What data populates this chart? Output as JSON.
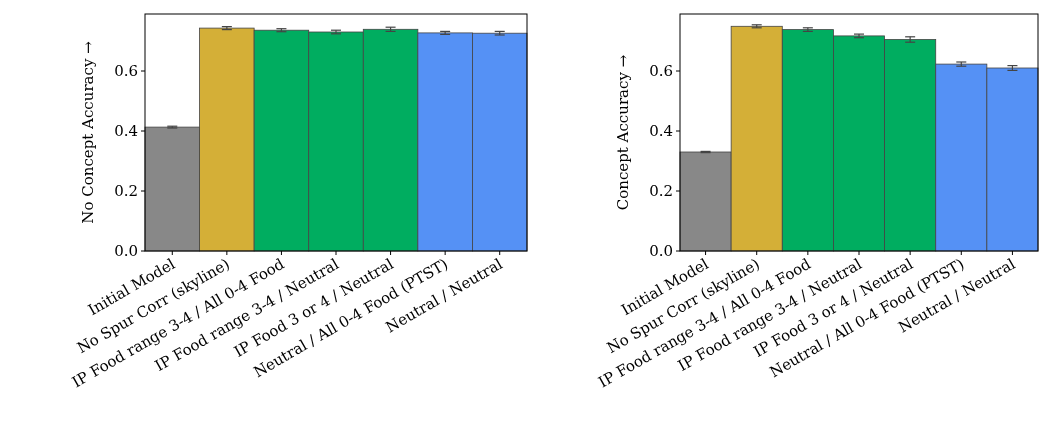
{
  "chart_data": [
    {
      "type": "bar",
      "ylabel": "No Concept Accuracy →",
      "categories": [
        "Initial Model",
        "No Spur Corr (skyline)",
        "IP Food range 3-4 / All 0-4 Food",
        "IP Food range 3-4 / Neutral",
        "IP Food 3 or 4 / Neutral",
        "Neutral / All 0-4 Food (PTST)",
        "Neutral / Neutral"
      ],
      "values": [
        0.413,
        0.743,
        0.736,
        0.73,
        0.739,
        0.727,
        0.726
      ],
      "errors": [
        0.003,
        0.005,
        0.005,
        0.006,
        0.007,
        0.005,
        0.006
      ],
      "colors": [
        "#888888",
        "#d4af37",
        "#00ad60",
        "#00ad60",
        "#00ad60",
        "#5591f5",
        "#5591f5"
      ],
      "ylim": [
        0,
        0.79
      ],
      "yticks": [
        {
          "value": 0,
          "label": "0.0"
        },
        0.2,
        0.4,
        0.6
      ],
      "grid": false
    },
    {
      "type": "bar",
      "ylabel": "Concept Accuracy →",
      "categories": [
        "Initial Model",
        "No Spur Corr (skyline)",
        "IP Food range 3-4 / All 0-4 Food",
        "IP Food range 3-4 / Neutral",
        "IP Food 3 or 4 / Neutral",
        "Neutral / All 0-4 Food (PTST)",
        "Neutral / Neutral"
      ],
      "values": [
        0.33,
        0.749,
        0.738,
        0.717,
        0.705,
        0.623,
        0.61
      ],
      "errors": [
        0.002,
        0.005,
        0.006,
        0.006,
        0.009,
        0.007,
        0.008
      ],
      "colors": [
        "#888888",
        "#d4af37",
        "#00ad60",
        "#00ad60",
        "#00ad60",
        "#5591f5",
        "#5591f5"
      ],
      "ylim": [
        0,
        0.79
      ],
      "yticks": [
        {
          "value": 0,
          "label": "0.0"
        },
        0.2,
        0.4,
        0.6
      ],
      "grid": false
    }
  ]
}
